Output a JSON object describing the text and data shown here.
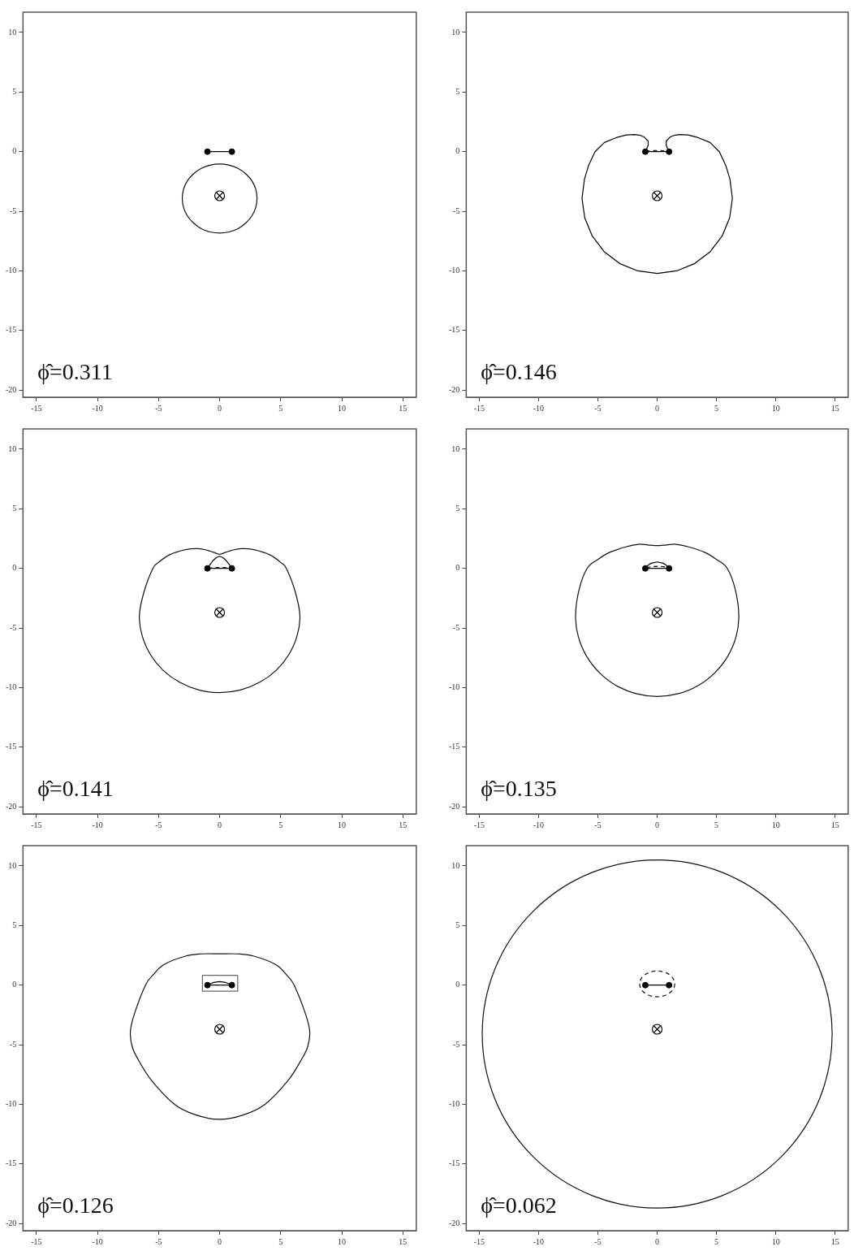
{
  "chart_data": [
    {
      "type": "line",
      "annotations": [
        "ϕ̂=0.311"
      ],
      "xlim": [
        -16.1,
        16.1
      ],
      "ylim": [
        -20.6,
        11.7
      ],
      "xticks": [
        -15,
        -10,
        -5,
        0,
        5,
        10,
        15
      ],
      "yticks": [
        -20,
        -15,
        -10,
        -5,
        0,
        5,
        10
      ],
      "series": [
        {
          "type": "line",
          "color": "#000000",
          "marker": "circle",
          "x": [
            -1,
            1
          ],
          "values": [
            0,
            0
          ]
        },
        {
          "type": "scatter",
          "color": "#000000",
          "marker": "cross",
          "x": [
            0
          ],
          "values": [
            -3.7
          ]
        }
      ]
    },
    {
      "type": "line",
      "annotations": [
        "ϕ̂=0.146"
      ],
      "xlim": [
        -16.1,
        16.1
      ],
      "ylim": [
        -20.6,
        11.7
      ],
      "xticks": [
        -15,
        -10,
        -5,
        0,
        5,
        10,
        15
      ],
      "yticks": [
        -20,
        -15,
        -10,
        -5,
        0,
        5,
        10
      ],
      "series": [
        {
          "type": "line",
          "color": "#000000",
          "x": [
            -0.96,
            -0.9,
            -0.76,
            -0.76,
            -1.08,
            -1.5,
            -1.91,
            -2.6,
            -3.33,
            -4.45,
            -5.24,
            -5.8,
            -6.13,
            -6.34,
            -6.11,
            -5.48,
            -4.48,
            -3.17,
            -1.64,
            0,
            1.64,
            3.17,
            4.48,
            5.48,
            6.11,
            6.34,
            6.13,
            5.8,
            5.24,
            4.45,
            3.33,
            2.6,
            1.91,
            1.5,
            1.08,
            0.76,
            0.76,
            0.9,
            0.96
          ],
          "values": [
            0.06,
            0.2,
            0.54,
            0.88,
            1.22,
            1.39,
            1.44,
            1.4,
            1.22,
            0.77,
            0,
            -1.2,
            -2.3,
            -3.92,
            -5.54,
            -7.07,
            -8.38,
            -9.38,
            -10,
            -10.22,
            -10,
            -9.38,
            -8.38,
            -7.07,
            -5.54,
            -3.92,
            -2.3,
            -1.2,
            0,
            0.77,
            1.22,
            1.4,
            1.44,
            1.39,
            1.22,
            0.88,
            0.54,
            0.2,
            0.06
          ]
        },
        {
          "type": "line",
          "color": "#000000",
          "line_style": "dashed",
          "x": [
            -0.95,
            -0.5,
            0,
            0.5,
            0.95
          ],
          "values": [
            0.02,
            0.08,
            0.1,
            0.08,
            0.02
          ]
        },
        {
          "type": "line",
          "color": "#000000",
          "marker": "circle",
          "x": [
            -1,
            1
          ],
          "values": [
            0,
            0
          ]
        },
        {
          "type": "scatter",
          "color": "#000000",
          "marker": "cross",
          "x": [
            0
          ],
          "values": [
            -3.7
          ]
        }
      ]
    },
    {
      "type": "line",
      "annotations": [
        "ϕ̂=0.141"
      ],
      "xlim": [
        -16.1,
        16.1
      ],
      "ylim": [
        -20.6,
        11.7
      ],
      "xticks": [
        -15,
        -10,
        -5,
        0,
        5,
        10,
        15
      ],
      "yticks": [
        -20,
        -15,
        -10,
        -5,
        0,
        5,
        10
      ],
      "series": [
        {
          "type": "line",
          "color": "#000000",
          "x": [
            -0.95,
            -0.75,
            -0.5,
            -0.25,
            0,
            0.25,
            0.5,
            0.75,
            0.95
          ],
          "values": [
            0.07,
            0.38,
            0.7,
            0.92,
            1.02,
            0.92,
            0.7,
            0.38,
            0.07
          ]
        },
        {
          "type": "line",
          "color": "#000000",
          "line_style": "dashed",
          "x": [
            -0.95,
            -0.5,
            0,
            0.5,
            0.95
          ],
          "values": [
            0.01,
            0.06,
            0.08,
            0.06,
            0.01
          ]
        },
        {
          "type": "line",
          "color": "#000000",
          "marker": "circle",
          "x": [
            -1,
            1
          ],
          "values": [
            0,
            0
          ]
        },
        {
          "type": "scatter",
          "color": "#000000",
          "marker": "cross",
          "x": [
            0
          ],
          "values": [
            -3.7
          ]
        }
      ]
    },
    {
      "type": "line",
      "annotations": [
        "ϕ̂=0.135"
      ],
      "xlim": [
        -16.1,
        16.1
      ],
      "ylim": [
        -20.6,
        11.7
      ],
      "xticks": [
        -15,
        -10,
        -5,
        0,
        5,
        10,
        15
      ],
      "yticks": [
        -20,
        -15,
        -10,
        -5,
        0,
        5,
        10
      ],
      "series": [
        {
          "type": "line",
          "color": "#000000",
          "x": [
            -0.95,
            -0.75,
            -0.5,
            0,
            0.5,
            0.75,
            0.95
          ],
          "values": [
            0.06,
            0.28,
            0.43,
            0.54,
            0.43,
            0.28,
            0.06
          ]
        },
        {
          "type": "line",
          "color": "#000000",
          "line_style": "dashed",
          "x": [
            -0.9,
            -0.5,
            0,
            0.5,
            0.9
          ],
          "values": [
            0.05,
            0.15,
            0.18,
            0.15,
            0.05
          ]
        },
        {
          "type": "line",
          "color": "#000000",
          "marker": "circle",
          "x": [
            -1,
            1
          ],
          "values": [
            0,
            0
          ]
        },
        {
          "type": "scatter",
          "color": "#000000",
          "marker": "cross",
          "x": [
            0
          ],
          "values": [
            -3.7
          ]
        }
      ]
    },
    {
      "type": "line",
      "annotations": [
        "ϕ̂=0.126"
      ],
      "xlim": [
        -16.1,
        16.1
      ],
      "ylim": [
        -20.6,
        11.7
      ],
      "xticks": [
        -15,
        -10,
        -5,
        0,
        5,
        10,
        15
      ],
      "yticks": [
        -20,
        -15,
        -10,
        -5,
        0,
        5,
        10
      ],
      "series": [
        {
          "type": "line",
          "color": "#666666",
          "x": [
            -1.41,
            1.48,
            1.48
          ],
          "values": [
            -0.51,
            -0.51,
            0.82
          ]
        },
        {
          "type": "line",
          "color": "#666666",
          "x": [
            1.48,
            -1.41,
            -1.41
          ],
          "values": [
            0.82,
            0.82,
            -0.51
          ]
        },
        {
          "type": "line",
          "color": "#000000",
          "x": [
            -0.95,
            -0.5,
            0,
            0.5,
            0.95
          ],
          "values": [
            0.03,
            0.22,
            0.29,
            0.22,
            0.03
          ]
        },
        {
          "type": "line",
          "color": "#000000",
          "marker": "circle",
          "x": [
            -1,
            1
          ],
          "values": [
            0,
            0
          ]
        },
        {
          "type": "scatter",
          "color": "#000000",
          "marker": "cross",
          "x": [
            0
          ],
          "values": [
            -3.7
          ]
        }
      ]
    },
    {
      "type": "line",
      "annotations": [
        "ϕ̂=0.062"
      ],
      "xlim": [
        -16.1,
        16.1
      ],
      "ylim": [
        -20.6,
        11.7
      ],
      "xticks": [
        -15,
        -10,
        -5,
        0,
        5,
        10,
        15
      ],
      "yticks": [
        -20,
        -15,
        -10,
        -5,
        0,
        5,
        10
      ],
      "series": [
        {
          "type": "line",
          "color": "#000000",
          "marker": "circle",
          "x": [
            -1,
            1
          ],
          "values": [
            0,
            0
          ]
        },
        {
          "type": "scatter",
          "color": "#000000",
          "marker": "cross",
          "x": [
            0
          ],
          "values": [
            -3.7
          ]
        }
      ]
    }
  ]
}
